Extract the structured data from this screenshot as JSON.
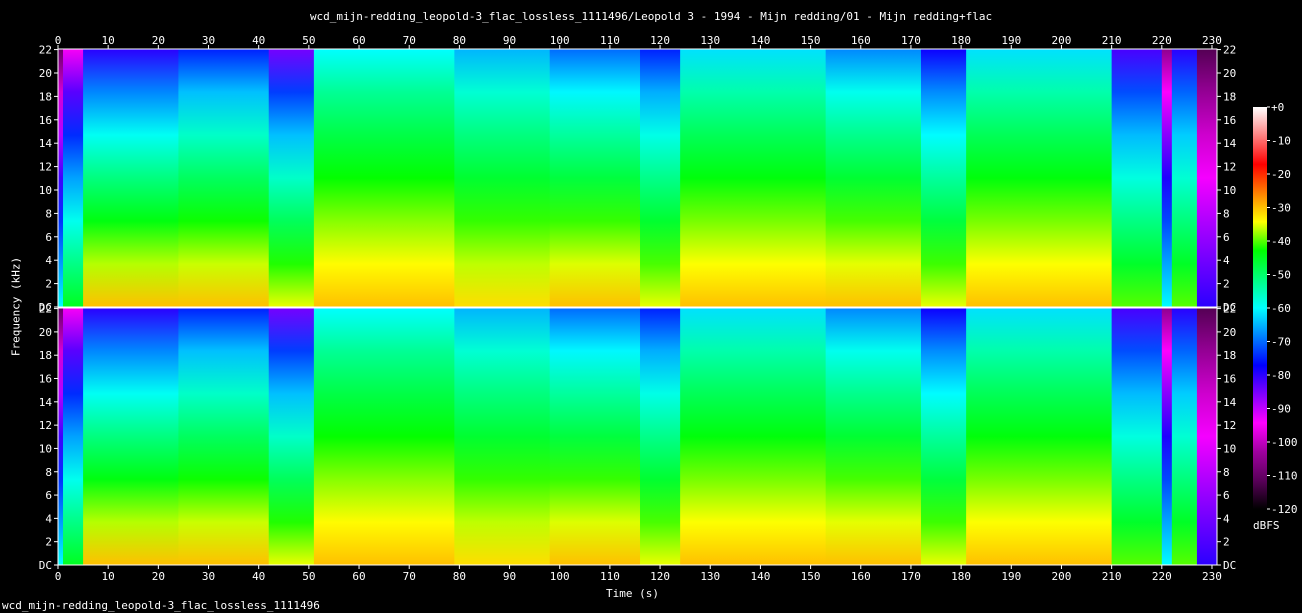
{
  "title": "wcd_mijn-redding_leopold-3_flac_lossless_1111496/Leopold 3 - 1994 - Mijn redding/01 - Mijn redding+flac",
  "footer": "wcd_mijn-redding_leopold-3_flac_lossless_1111496",
  "chart_data": {
    "type": "heatmap",
    "title": "wcd_mijn-redding_leopold-3_flac_lossless_1111496/Leopold 3 - 1994 - Mijn redding/01 - Mijn redding+flac",
    "xlabel": "Time (s)",
    "ylabel": "Frequency (kHz)",
    "colorbar_label": "dBFS",
    "xlim": [
      0,
      231
    ],
    "ylim": [
      0,
      22.05
    ],
    "x_ticks": [
      "0",
      "10",
      "20",
      "30",
      "40",
      "50",
      "60",
      "70",
      "80",
      "90",
      "100",
      "110",
      "120",
      "130",
      "140",
      "150",
      "160",
      "170",
      "180",
      "190",
      "200",
      "210",
      "220",
      "230"
    ],
    "y_ticks": [
      "DC",
      "2",
      "4",
      "6",
      "8",
      "10",
      "12",
      "14",
      "16",
      "18",
      "20",
      "22"
    ],
    "colorbar_ticks": [
      "+0",
      "-10",
      "-20",
      "-30",
      "-40",
      "-50",
      "-60",
      "-70",
      "-80",
      "-90",
      "-100",
      "-110",
      "-120"
    ],
    "colorbar_range": [
      -120,
      0
    ],
    "channels": 2,
    "colormap": [
      "#000000",
      "#5a005a",
      "#a000a0",
      "#ff00ff",
      "#8000ff",
      "#0000ff",
      "#0080ff",
      "#00ffff",
      "#00ff80",
      "#00ff00",
      "#ffff00",
      "#ff8000",
      "#ff0000",
      "#ff8080",
      "#ffffff"
    ],
    "sections": [
      {
        "start": 0,
        "end": 1,
        "top_db": -110,
        "bottom_db": -60
      },
      {
        "start": 1,
        "end": 5,
        "top_db": -95,
        "bottom_db": -45
      },
      {
        "start": 5,
        "end": 24,
        "top_db": -80,
        "bottom_db": -30
      },
      {
        "start": 24,
        "end": 42,
        "top_db": -75,
        "bottom_db": -30
      },
      {
        "start": 42,
        "end": 51,
        "top_db": -85,
        "bottom_db": -35
      },
      {
        "start": 51,
        "end": 79,
        "top_db": -60,
        "bottom_db": -30
      },
      {
        "start": 79,
        "end": 98,
        "top_db": -65,
        "bottom_db": -32
      },
      {
        "start": 98,
        "end": 116,
        "top_db": -70,
        "bottom_db": -30
      },
      {
        "start": 116,
        "end": 124,
        "top_db": -75,
        "bottom_db": -35
      },
      {
        "start": 124,
        "end": 153,
        "top_db": -62,
        "bottom_db": -30
      },
      {
        "start": 153,
        "end": 172,
        "top_db": -68,
        "bottom_db": -30
      },
      {
        "start": 172,
        "end": 181,
        "top_db": -78,
        "bottom_db": -35
      },
      {
        "start": 181,
        "end": 210,
        "top_db": -62,
        "bottom_db": -30
      },
      {
        "start": 210,
        "end": 220,
        "top_db": -82,
        "bottom_db": -40
      },
      {
        "start": 220,
        "end": 222,
        "top_db": -105,
        "bottom_db": -60
      },
      {
        "start": 222,
        "end": 227,
        "top_db": -80,
        "bottom_db": -40
      },
      {
        "start": 227,
        "end": 231,
        "top_db": -112,
        "bottom_db": -80
      }
    ]
  }
}
